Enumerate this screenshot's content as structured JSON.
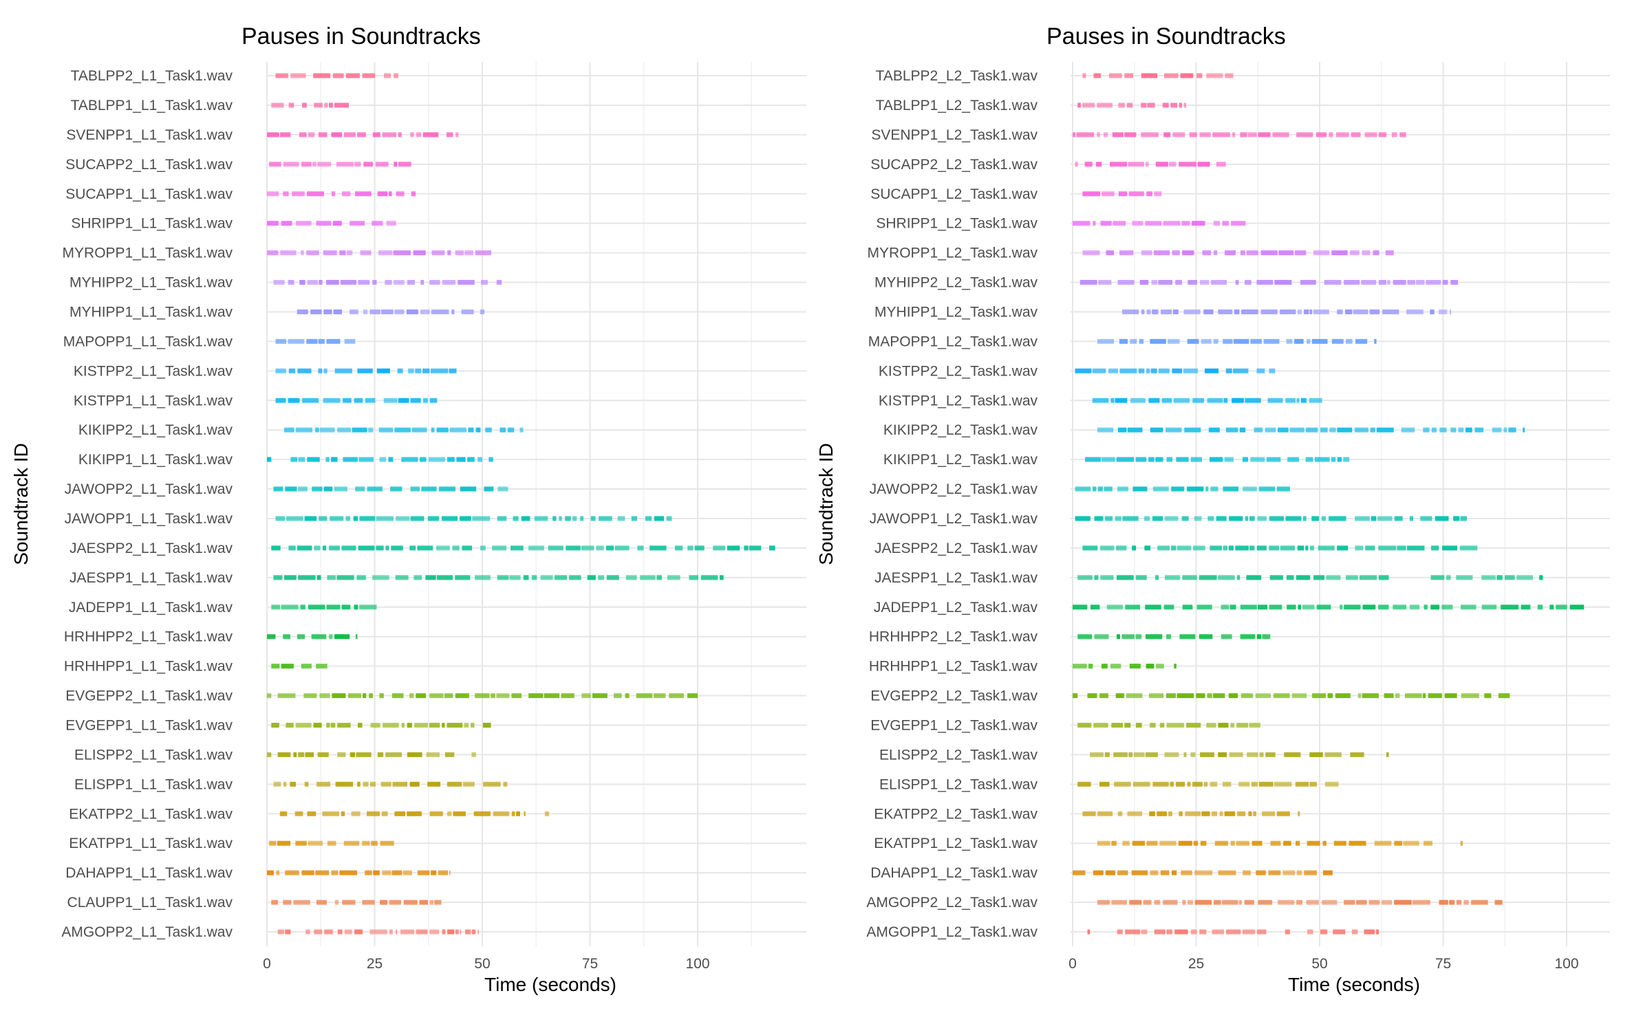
{
  "chart_data": [
    {
      "type": "strip",
      "title": "Pauses in Soundtracks",
      "xlabel": "Time (seconds)",
      "ylabel": "Soundtrack ID",
      "xlim": [
        -5,
        124
      ],
      "xticks": [
        0,
        25,
        50,
        75,
        100
      ],
      "grid": true,
      "categories": [
        "AMGOPP2_L1_Task1.wav",
        "CLAUPP1_L1_Task1.wav",
        "DAHAPP1_L1_Task1.wav",
        "EKATPP1_L1_Task1.wav",
        "EKATPP2_L1_Task1.wav",
        "ELISPP1_L1_Task1.wav",
        "ELISPP2_L1_Task1.wav",
        "EVGEPP1_L1_Task1.wav",
        "EVGEPP2_L1_Task1.wav",
        "HRHHPP1_L1_Task1.wav",
        "HRHHPP2_L1_Task1.wav",
        "JADEPP1_L1_Task1.wav",
        "JAESPP1_L1_Task1.wav",
        "JAESPP2_L1_Task1.wav",
        "JAWOPP1_L1_Task1.wav",
        "JAWOPP2_L1_Task1.wav",
        "KIKIPP1_L1_Task1.wav",
        "KIKIPP2_L1_Task1.wav",
        "KISTPP1_L1_Task1.wav",
        "KISTPP2_L1_Task1.wav",
        "MAPOPP1_L1_Task1.wav",
        "MYHIPP1_L1_Task1.wav",
        "MYHIPP2_L1_Task1.wav",
        "MYROPP1_L1_Task1.wav",
        "SHRIPP1_L1_Task1.wav",
        "SUCAPP1_L1_Task1.wav",
        "SUCAPP2_L1_Task1.wav",
        "SVENPP1_L1_Task1.wav",
        "TABLPP1_L1_Task1.wav",
        "TABLPP2_L1_Task1.wav"
      ],
      "series": [
        {
          "ranges": [
            [
              2.5,
              5.5
            ],
            [
              9,
              30
            ],
            [
              31,
              45
            ],
            [
              46,
              49
            ]
          ]
        },
        {
          "ranges": [
            [
              1,
              40.5
            ]
          ]
        },
        {
          "ranges": [
            [
              0,
              42.5
            ]
          ]
        },
        {
          "ranges": [
            [
              0.5,
              29.5
            ]
          ]
        },
        {
          "ranges": [
            [
              3,
              5
            ],
            [
              6.5,
              60
            ],
            [
              64.5,
              65.5
            ]
          ]
        },
        {
          "ranges": [
            [
              1.5,
              57
            ]
          ]
        },
        {
          "ranges": [
            [
              0,
              1
            ],
            [
              2.5,
              43.5
            ],
            [
              47.5,
              48.5
            ]
          ]
        },
        {
          "ranges": [
            [
              1,
              52
            ]
          ]
        },
        {
          "ranges": [
            [
              0,
              1
            ],
            [
              2.5,
              100
            ]
          ]
        },
        {
          "ranges": [
            [
              1,
              14
            ]
          ]
        },
        {
          "ranges": [
            [
              0,
              21
            ]
          ]
        },
        {
          "ranges": [
            [
              1,
              25.5
            ]
          ]
        },
        {
          "ranges": [
            [
              1.5,
              106
            ]
          ]
        },
        {
          "ranges": [
            [
              1,
              118
            ]
          ]
        },
        {
          "ranges": [
            [
              2,
              94
            ]
          ]
        },
        {
          "ranges": [
            [
              1.5,
              56
            ]
          ]
        },
        {
          "ranges": [
            [
              0,
              1
            ],
            [
              5.5,
              50
            ],
            [
              51.5,
              52.5
            ]
          ]
        },
        {
          "ranges": [
            [
              4,
              59.5
            ]
          ]
        },
        {
          "ranges": [
            [
              2,
              39.5
            ]
          ]
        },
        {
          "ranges": [
            [
              2,
              44
            ]
          ]
        },
        {
          "ranges": [
            [
              2,
              17
            ],
            [
              18,
              21
            ]
          ]
        },
        {
          "ranges": [
            [
              7,
              50.5
            ]
          ]
        },
        {
          "ranges": [
            [
              1.5,
              54.5
            ]
          ]
        },
        {
          "ranges": [
            [
              0,
              52.5
            ]
          ]
        },
        {
          "ranges": [
            [
              0,
              30
            ]
          ]
        },
        {
          "ranges": [
            [
              0,
              34.5
            ]
          ]
        },
        {
          "ranges": [
            [
              0.5,
              33.5
            ]
          ]
        },
        {
          "ranges": [
            [
              0,
              44.5
            ]
          ]
        },
        {
          "ranges": [
            [
              1,
              19
            ]
          ]
        },
        {
          "ranges": [
            [
              2,
              30.5
            ]
          ]
        }
      ]
    },
    {
      "type": "strip",
      "title": "Pauses in Soundtracks",
      "xlabel": "Time (seconds)",
      "ylabel": "Soundtrack ID",
      "xlim": [
        -5,
        109
      ],
      "xticks": [
        0,
        25,
        50,
        75,
        100
      ],
      "grid": true,
      "categories": [
        "AMGOPP1_L2_Task1.wav",
        "AMGOPP2_L2_Task1.wav",
        "DAHAPP1_L2_Task1.wav",
        "EKATPP1_L2_Task1.wav",
        "EKATPP2_L2_Task1.wav",
        "ELISPP1_L2_Task1.wav",
        "ELISPP2_L2_Task1.wav",
        "EVGEPP1_L2_Task1.wav",
        "EVGEPP2_L2_Task1.wav",
        "HRHHPP1_L2_Task1.wav",
        "HRHHPP2_L2_Task1.wav",
        "JADEPP1_L2_Task1.wav",
        "JAESPP1_L2_Task1.wav",
        "JAESPP2_L2_Task1.wav",
        "JAWOPP1_L2_Task1.wav",
        "JAWOPP2_L2_Task1.wav",
        "KIKIPP1_L2_Task1.wav",
        "KIKIPP2_L2_Task1.wav",
        "KISTPP1_L2_Task1.wav",
        "KISTPP2_L2_Task1.wav",
        "MAPOPP1_L2_Task1.wav",
        "MYHIPP1_L2_Task1.wav",
        "MYHIPP2_L2_Task1.wav",
        "MYROPP1_L2_Task1.wav",
        "SHRIPP1_L2_Task1.wav",
        "SUCAPP1_L2_Task1.wav",
        "SUCAPP2_L2_Task1.wav",
        "SVENPP1_L2_Task1.wav",
        "TABLPP1_L2_Task1.wav",
        "TABLPP2_L2_Task1.wav"
      ],
      "series": [
        {
          "ranges": [
            [
              3,
              3.5
            ],
            [
              9,
              40
            ],
            [
              43,
              44
            ],
            [
              47.5,
              62
            ]
          ]
        },
        {
          "ranges": [
            [
              5,
              87
            ]
          ]
        },
        {
          "ranges": [
            [
              0,
              53
            ]
          ]
        },
        {
          "ranges": [
            [
              5,
              74.5
            ],
            [
              78.5,
              79
            ]
          ]
        },
        {
          "ranges": [
            [
              2,
              46
            ]
          ]
        },
        {
          "ranges": [
            [
              1,
              55
            ]
          ]
        },
        {
          "ranges": [
            [
              3.5,
              59
            ],
            [
              63.5,
              64
            ]
          ]
        },
        {
          "ranges": [
            [
              1,
              38
            ]
          ]
        },
        {
          "ranges": [
            [
              0,
              1
            ],
            [
              3,
              88.5
            ]
          ]
        },
        {
          "ranges": [
            [
              0,
              18.5
            ],
            [
              20.5,
              21
            ]
          ]
        },
        {
          "ranges": [
            [
              1,
              40
            ]
          ]
        },
        {
          "ranges": [
            [
              0,
              104
            ]
          ]
        },
        {
          "ranges": [
            [
              1,
              64
            ],
            [
              72.5,
              95.5
            ]
          ]
        },
        {
          "ranges": [
            [
              2,
              82
            ]
          ]
        },
        {
          "ranges": [
            [
              0.5,
              81
            ]
          ]
        },
        {
          "ranges": [
            [
              0.5,
              44
            ]
          ]
        },
        {
          "ranges": [
            [
              2.5,
              56
            ]
          ]
        },
        {
          "ranges": [
            [
              5,
              91.5
            ]
          ]
        },
        {
          "ranges": [
            [
              4,
              50.5
            ]
          ]
        },
        {
          "ranges": [
            [
              0.5,
              41
            ]
          ]
        },
        {
          "ranges": [
            [
              5,
              61.5
            ]
          ]
        },
        {
          "ranges": [
            [
              10,
              76.5
            ]
          ]
        },
        {
          "ranges": [
            [
              1.5,
              78
            ]
          ]
        },
        {
          "ranges": [
            [
              2,
              65
            ]
          ]
        },
        {
          "ranges": [
            [
              0,
              35
            ]
          ]
        },
        {
          "ranges": [
            [
              2,
              18
            ]
          ]
        },
        {
          "ranges": [
            [
              0.5,
              31
            ]
          ]
        },
        {
          "ranges": [
            [
              0,
              67.5
            ]
          ]
        },
        {
          "ranges": [
            [
              1,
              23
            ]
          ]
        },
        {
          "ranges": [
            [
              2,
              32.5
            ]
          ]
        }
      ]
    }
  ]
}
